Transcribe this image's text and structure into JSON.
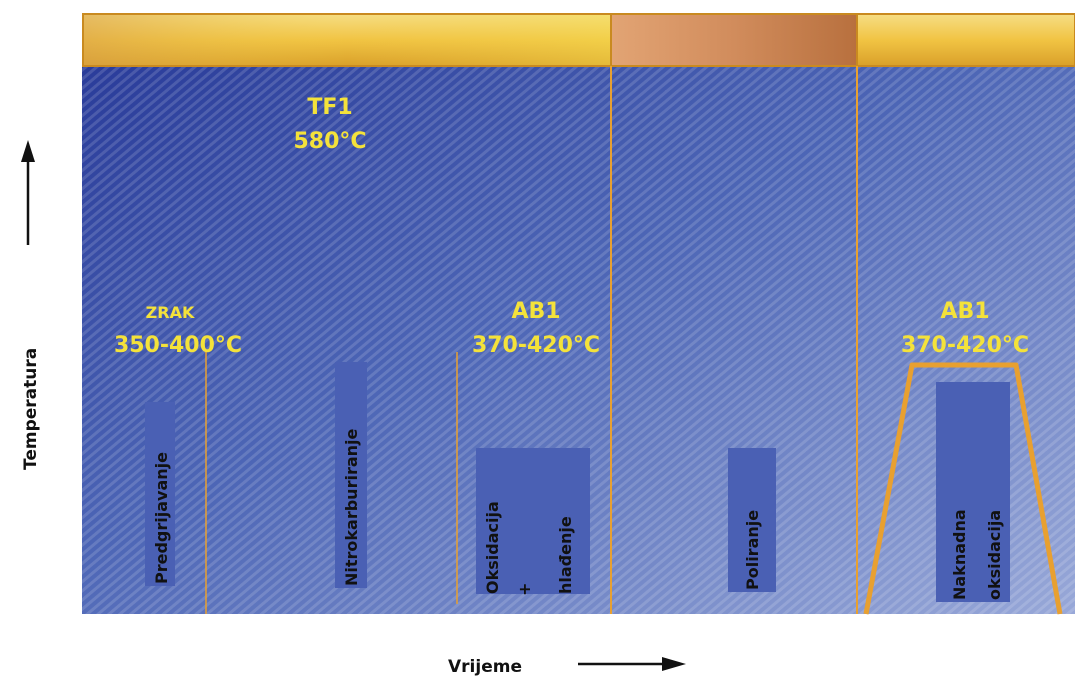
{
  "axes": {
    "y_label": "Temperatura",
    "x_label": "Vrijeme"
  },
  "zones": {
    "tf1_name": "TF1",
    "tf1_temp": "580°C",
    "zrak_name": "ZRAK",
    "zrak_temp": "350-400°C",
    "ab1_left_name": "AB1",
    "ab1_left_temp": "370-420°C",
    "ab1_right_name": "AB1",
    "ab1_right_temp": "370-420°C"
  },
  "steps": {
    "preheat": "Predgrijavanje",
    "nitro": "Nitrokarburiranje",
    "oxid_1": "Oksidacija",
    "oxid_plus": "+",
    "oxid_2": "hlađenje",
    "polish": "Poliranje",
    "post_1": "Naknadna",
    "post_2": "oksidacija"
  },
  "colors": {
    "header_gold": "#f0c94a",
    "header_copper": "#c8804a",
    "field_blue": "#3a55b0",
    "accent_yellow": "#f4e23a",
    "line_orange": "#e8a030"
  }
}
